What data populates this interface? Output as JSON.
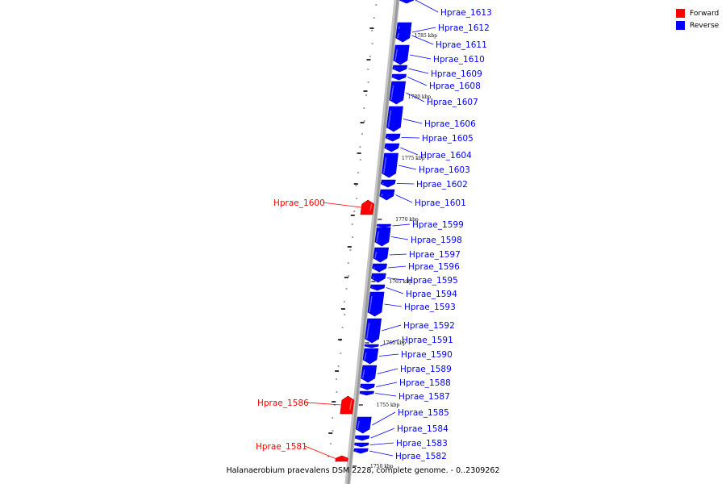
{
  "caption": "Halanaerobium praevalens DSM 2228, complete genome. - 0..2309262",
  "legend": [
    {
      "label": "Forward",
      "color": "#ff0000"
    },
    {
      "label": "Reverse",
      "color": "#0000ff"
    }
  ],
  "colors": {
    "forward": "#ff0000",
    "reverse": "#0000ff",
    "backbone": "#9a9a9a"
  },
  "scale_marks": [
    "1785 kbp",
    "1780 kbp",
    "1775 kbp",
    "1770 kbp",
    "1765 kbp",
    "1760 kbp",
    "1755 kbp",
    "1750 kbp"
  ],
  "genes": [
    {
      "id": "Hprae_1613",
      "strand": "reverse"
    },
    {
      "id": "Hprae_1612",
      "strand": "reverse"
    },
    {
      "id": "Hprae_1611",
      "strand": "reverse"
    },
    {
      "id": "Hprae_1610",
      "strand": "reverse"
    },
    {
      "id": "Hprae_1609",
      "strand": "reverse"
    },
    {
      "id": "Hprae_1608",
      "strand": "reverse"
    },
    {
      "id": "Hprae_1607",
      "strand": "reverse"
    },
    {
      "id": "Hprae_1606",
      "strand": "reverse"
    },
    {
      "id": "Hprae_1605",
      "strand": "reverse"
    },
    {
      "id": "Hprae_1604",
      "strand": "reverse"
    },
    {
      "id": "Hprae_1603",
      "strand": "reverse"
    },
    {
      "id": "Hprae_1602",
      "strand": "reverse"
    },
    {
      "id": "Hprae_1601",
      "strand": "reverse"
    },
    {
      "id": "Hprae_1600",
      "strand": "forward"
    },
    {
      "id": "Hprae_1599",
      "strand": "reverse"
    },
    {
      "id": "Hprae_1598",
      "strand": "reverse"
    },
    {
      "id": "Hprae_1597",
      "strand": "reverse"
    },
    {
      "id": "Hprae_1596",
      "strand": "reverse"
    },
    {
      "id": "Hprae_1595",
      "strand": "reverse"
    },
    {
      "id": "Hprae_1594",
      "strand": "reverse"
    },
    {
      "id": "Hprae_1593",
      "strand": "reverse"
    },
    {
      "id": "Hprae_1592",
      "strand": "reverse"
    },
    {
      "id": "Hprae_1591",
      "strand": "reverse"
    },
    {
      "id": "Hprae_1590",
      "strand": "reverse"
    },
    {
      "id": "Hprae_1589",
      "strand": "reverse"
    },
    {
      "id": "Hprae_1588",
      "strand": "reverse"
    },
    {
      "id": "Hprae_1587",
      "strand": "reverse"
    },
    {
      "id": "Hprae_1586",
      "strand": "forward"
    },
    {
      "id": "Hprae_1585",
      "strand": "reverse"
    },
    {
      "id": "Hprae_1584",
      "strand": "reverse"
    },
    {
      "id": "Hprae_1583",
      "strand": "reverse"
    },
    {
      "id": "Hprae_1582",
      "strand": "reverse"
    },
    {
      "id": "Hprae_1581",
      "strand": "forward"
    }
  ]
}
